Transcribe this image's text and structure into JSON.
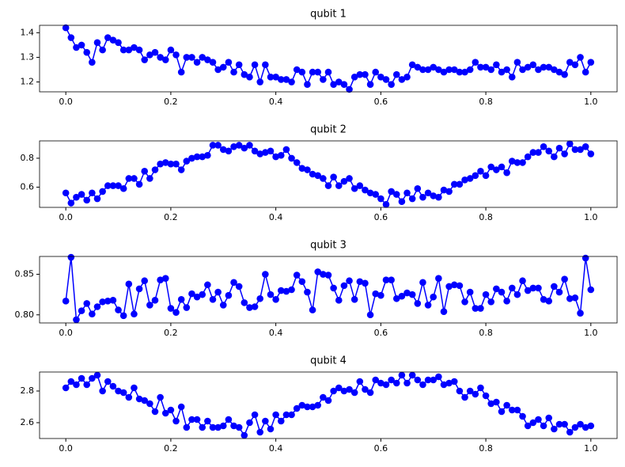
{
  "chart_data": [
    {
      "type": "line",
      "title": "qubit 1",
      "color": "#0000ff",
      "x": [
        0,
        0.01,
        0.02,
        0.03,
        0.04,
        0.05,
        0.06,
        0.07,
        0.08,
        0.09,
        0.1,
        0.11,
        0.12,
        0.13,
        0.14,
        0.15,
        0.16,
        0.17,
        0.18,
        0.19,
        0.2,
        0.21,
        0.22,
        0.23,
        0.24,
        0.25,
        0.26,
        0.27,
        0.28,
        0.29,
        0.3,
        0.31,
        0.32,
        0.33,
        0.34,
        0.35,
        0.36,
        0.37,
        0.38,
        0.39,
        0.4,
        0.41,
        0.42,
        0.43,
        0.44,
        0.45,
        0.46,
        0.47,
        0.48,
        0.49,
        0.5,
        0.51,
        0.52,
        0.53,
        0.54,
        0.55,
        0.56,
        0.57,
        0.58,
        0.59,
        0.6,
        0.61,
        0.62,
        0.63,
        0.64,
        0.65,
        0.66,
        0.67,
        0.68,
        0.69,
        0.7,
        0.71,
        0.72,
        0.73,
        0.74,
        0.75,
        0.76,
        0.77,
        0.78,
        0.79,
        0.8,
        0.81,
        0.82,
        0.83,
        0.84,
        0.85,
        0.86,
        0.87,
        0.88,
        0.89,
        0.9,
        0.91,
        0.92,
        0.93,
        0.94,
        0.95,
        0.96,
        0.97,
        0.98,
        0.99,
        1
      ],
      "values": [
        1.42,
        1.38,
        1.34,
        1.35,
        1.32,
        1.28,
        1.36,
        1.33,
        1.38,
        1.37,
        1.36,
        1.33,
        1.33,
        1.34,
        1.33,
        1.29,
        1.31,
        1.32,
        1.3,
        1.29,
        1.33,
        1.31,
        1.24,
        1.3,
        1.3,
        1.28,
        1.3,
        1.29,
        1.28,
        1.25,
        1.26,
        1.28,
        1.24,
        1.27,
        1.23,
        1.22,
        1.27,
        1.2,
        1.27,
        1.22,
        1.22,
        1.21,
        1.21,
        1.2,
        1.25,
        1.24,
        1.19,
        1.24,
        1.24,
        1.21,
        1.24,
        1.19,
        1.2,
        1.19,
        1.17,
        1.22,
        1.23,
        1.23,
        1.19,
        1.24,
        1.22,
        1.21,
        1.19,
        1.23,
        1.21,
        1.22,
        1.27,
        1.26,
        1.25,
        1.25,
        1.26,
        1.25,
        1.24,
        1.25,
        1.25,
        1.24,
        1.24,
        1.25,
        1.28,
        1.26,
        1.26,
        1.25,
        1.27,
        1.24,
        1.25,
        1.22,
        1.28,
        1.25,
        1.26,
        1.27,
        1.25,
        1.26,
        1.26,
        1.25,
        1.24,
        1.23,
        1.28,
        1.27,
        1.3,
        1.24,
        1.28
      ],
      "xlim": [
        -0.05,
        1.05
      ],
      "ylim": [
        1.16,
        1.43
      ],
      "xticks": [
        {
          "value": 0,
          "label": "0.0"
        },
        0.2,
        0.4,
        0.6,
        0.8,
        {
          "value": 1,
          "label": "1.0"
        }
      ],
      "yticks": [
        1.2,
        1.3,
        1.4
      ]
    },
    {
      "type": "line",
      "title": "qubit 2",
      "color": "#0000ff",
      "x": [
        0,
        0.01,
        0.02,
        0.03,
        0.04,
        0.05,
        0.06,
        0.07,
        0.08,
        0.09,
        0.1,
        0.11,
        0.12,
        0.13,
        0.14,
        0.15,
        0.16,
        0.17,
        0.18,
        0.19,
        0.2,
        0.21,
        0.22,
        0.23,
        0.24,
        0.25,
        0.26,
        0.27,
        0.28,
        0.29,
        0.3,
        0.31,
        0.32,
        0.33,
        0.34,
        0.35,
        0.36,
        0.37,
        0.38,
        0.39,
        0.4,
        0.41,
        0.42,
        0.43,
        0.44,
        0.45,
        0.46,
        0.47,
        0.48,
        0.49,
        0.5,
        0.51,
        0.52,
        0.53,
        0.54,
        0.55,
        0.56,
        0.57,
        0.58,
        0.59,
        0.6,
        0.61,
        0.62,
        0.63,
        0.64,
        0.65,
        0.66,
        0.67,
        0.68,
        0.69,
        0.7,
        0.71,
        0.72,
        0.73,
        0.74,
        0.75,
        0.76,
        0.77,
        0.78,
        0.79,
        0.8,
        0.81,
        0.82,
        0.83,
        0.84,
        0.85,
        0.86,
        0.87,
        0.88,
        0.89,
        0.9,
        0.91,
        0.92,
        0.93,
        0.94,
        0.95,
        0.96,
        0.97,
        0.98,
        0.99,
        1
      ],
      "values": [
        0.56,
        0.49,
        0.53,
        0.55,
        0.51,
        0.56,
        0.52,
        0.57,
        0.61,
        0.61,
        0.61,
        0.59,
        0.66,
        0.66,
        0.62,
        0.71,
        0.66,
        0.72,
        0.76,
        0.77,
        0.76,
        0.76,
        0.72,
        0.78,
        0.8,
        0.81,
        0.81,
        0.82,
        0.89,
        0.89,
        0.86,
        0.85,
        0.88,
        0.89,
        0.87,
        0.89,
        0.85,
        0.83,
        0.84,
        0.85,
        0.81,
        0.82,
        0.86,
        0.8,
        0.77,
        0.73,
        0.72,
        0.69,
        0.68,
        0.66,
        0.61,
        0.67,
        0.61,
        0.64,
        0.66,
        0.59,
        0.61,
        0.58,
        0.56,
        0.55,
        0.52,
        0.48,
        0.57,
        0.55,
        0.5,
        0.56,
        0.52,
        0.59,
        0.53,
        0.56,
        0.54,
        0.53,
        0.58,
        0.57,
        0.62,
        0.62,
        0.65,
        0.66,
        0.68,
        0.71,
        0.68,
        0.74,
        0.72,
        0.74,
        0.7,
        0.78,
        0.77,
        0.77,
        0.81,
        0.84,
        0.84,
        0.88,
        0.85,
        0.81,
        0.87,
        0.83,
        0.9,
        0.86,
        0.86,
        0.88,
        0.83
      ],
      "xlim": [
        -0.05,
        1.05
      ],
      "ylim": [
        0.46,
        0.92
      ],
      "xticks": [
        {
          "value": 0,
          "label": "0.0"
        },
        0.2,
        0.4,
        0.6,
        0.8,
        {
          "value": 1,
          "label": "1.0"
        }
      ],
      "yticks": [
        0.6,
        0.8
      ]
    },
    {
      "type": "line",
      "title": "qubit 3",
      "color": "#0000ff",
      "x": [
        0,
        0.01,
        0.02,
        0.03,
        0.04,
        0.05,
        0.06,
        0.07,
        0.08,
        0.09,
        0.1,
        0.11,
        0.12,
        0.13,
        0.14,
        0.15,
        0.16,
        0.17,
        0.18,
        0.19,
        0.2,
        0.21,
        0.22,
        0.23,
        0.24,
        0.25,
        0.26,
        0.27,
        0.28,
        0.29,
        0.3,
        0.31,
        0.32,
        0.33,
        0.34,
        0.35,
        0.36,
        0.37,
        0.38,
        0.39,
        0.4,
        0.41,
        0.42,
        0.43,
        0.44,
        0.45,
        0.46,
        0.47,
        0.48,
        0.49,
        0.5,
        0.51,
        0.52,
        0.53,
        0.54,
        0.55,
        0.56,
        0.57,
        0.58,
        0.59,
        0.6,
        0.61,
        0.62,
        0.63,
        0.64,
        0.65,
        0.66,
        0.67,
        0.68,
        0.69,
        0.7,
        0.71,
        0.72,
        0.73,
        0.74,
        0.75,
        0.76,
        0.77,
        0.78,
        0.79,
        0.8,
        0.81,
        0.82,
        0.83,
        0.84,
        0.85,
        0.86,
        0.87,
        0.88,
        0.89,
        0.9,
        0.91,
        0.92,
        0.93,
        0.94,
        0.95,
        0.96,
        0.97,
        0.98,
        0.99,
        1
      ],
      "values": [
        0.817,
        0.871,
        0.794,
        0.805,
        0.814,
        0.801,
        0.81,
        0.816,
        0.817,
        0.818,
        0.806,
        0.799,
        0.838,
        0.801,
        0.832,
        0.842,
        0.812,
        0.818,
        0.843,
        0.845,
        0.808,
        0.803,
        0.819,
        0.809,
        0.826,
        0.822,
        0.825,
        0.837,
        0.819,
        0.828,
        0.812,
        0.824,
        0.84,
        0.835,
        0.815,
        0.809,
        0.81,
        0.82,
        0.85,
        0.825,
        0.819,
        0.83,
        0.829,
        0.831,
        0.849,
        0.841,
        0.828,
        0.806,
        0.853,
        0.85,
        0.849,
        0.833,
        0.818,
        0.836,
        0.842,
        0.819,
        0.841,
        0.839,
        0.8,
        0.826,
        0.824,
        0.843,
        0.843,
        0.82,
        0.823,
        0.827,
        0.825,
        0.814,
        0.84,
        0.812,
        0.822,
        0.845,
        0.804,
        0.835,
        0.837,
        0.836,
        0.816,
        0.828,
        0.808,
        0.808,
        0.825,
        0.816,
        0.832,
        0.828,
        0.817,
        0.833,
        0.825,
        0.842,
        0.83,
        0.833,
        0.833,
        0.819,
        0.817,
        0.835,
        0.828,
        0.844,
        0.82,
        0.821,
        0.802,
        0.87,
        0.831
      ],
      "xlim": [
        -0.05,
        1.05
      ],
      "ylim": [
        0.79,
        0.872
      ],
      "xticks": [
        {
          "value": 0,
          "label": "0.0"
        },
        0.2,
        0.4,
        0.6,
        0.8,
        {
          "value": 1,
          "label": "1.0"
        }
      ],
      "yticks": [
        {
          "value": 0.8,
          "label": "0.80"
        },
        0.85
      ]
    },
    {
      "type": "line",
      "title": "qubit 4",
      "color": "#0000ff",
      "x": [
        0,
        0.01,
        0.02,
        0.03,
        0.04,
        0.05,
        0.06,
        0.07,
        0.08,
        0.09,
        0.1,
        0.11,
        0.12,
        0.13,
        0.14,
        0.15,
        0.16,
        0.17,
        0.18,
        0.19,
        0.2,
        0.21,
        0.22,
        0.23,
        0.24,
        0.25,
        0.26,
        0.27,
        0.28,
        0.29,
        0.3,
        0.31,
        0.32,
        0.33,
        0.34,
        0.35,
        0.36,
        0.37,
        0.38,
        0.39,
        0.4,
        0.41,
        0.42,
        0.43,
        0.44,
        0.45,
        0.46,
        0.47,
        0.48,
        0.49,
        0.5,
        0.51,
        0.52,
        0.53,
        0.54,
        0.55,
        0.56,
        0.57,
        0.58,
        0.59,
        0.6,
        0.61,
        0.62,
        0.63,
        0.64,
        0.65,
        0.66,
        0.67,
        0.68,
        0.69,
        0.7,
        0.71,
        0.72,
        0.73,
        0.74,
        0.75,
        0.76,
        0.77,
        0.78,
        0.79,
        0.8,
        0.81,
        0.82,
        0.83,
        0.84,
        0.85,
        0.86,
        0.87,
        0.88,
        0.89,
        0.9,
        0.91,
        0.92,
        0.93,
        0.94,
        0.95,
        0.96,
        0.97,
        0.98,
        0.99,
        1
      ],
      "values": [
        2.82,
        2.86,
        2.84,
        2.88,
        2.84,
        2.88,
        2.9,
        2.8,
        2.86,
        2.83,
        2.8,
        2.79,
        2.76,
        2.82,
        2.75,
        2.74,
        2.72,
        2.67,
        2.76,
        2.66,
        2.68,
        2.61,
        2.7,
        2.57,
        2.62,
        2.62,
        2.57,
        2.61,
        2.57,
        2.57,
        2.58,
        2.62,
        2.58,
        2.57,
        2.52,
        2.6,
        2.65,
        2.54,
        2.61,
        2.56,
        2.65,
        2.61,
        2.65,
        2.65,
        2.69,
        2.71,
        2.7,
        2.7,
        2.71,
        2.76,
        2.74,
        2.8,
        2.82,
        2.8,
        2.81,
        2.79,
        2.86,
        2.81,
        2.79,
        2.87,
        2.85,
        2.84,
        2.87,
        2.85,
        2.9,
        2.85,
        2.9,
        2.87,
        2.84,
        2.87,
        2.87,
        2.89,
        2.84,
        2.85,
        2.86,
        2.8,
        2.76,
        2.8,
        2.78,
        2.82,
        2.77,
        2.72,
        2.73,
        2.67,
        2.71,
        2.68,
        2.68,
        2.64,
        2.58,
        2.6,
        2.62,
        2.58,
        2.63,
        2.56,
        2.59,
        2.59,
        2.54,
        2.57,
        2.59,
        2.57,
        2.58
      ],
      "xlim": [
        -0.05,
        1.05
      ],
      "ylim": [
        2.5,
        2.92
      ],
      "xticks": [
        {
          "value": 0,
          "label": "0.0"
        },
        0.2,
        0.4,
        0.6,
        0.8,
        {
          "value": 1,
          "label": "1.0"
        }
      ],
      "yticks": [
        2.6,
        2.8
      ]
    }
  ]
}
